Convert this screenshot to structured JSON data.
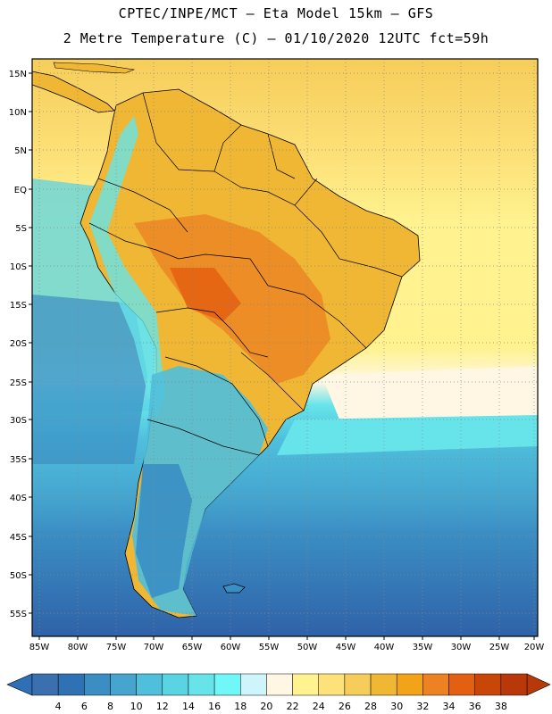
{
  "title_line1": "CPTEC/INPE/MCT –  Eta Model 15km – GFS",
  "title_line2": "2 Metre Temperature (C) – 01/10/2020 12UTC fct=59h",
  "lat_labels": [
    "15N",
    "10N",
    "5N",
    "EQ",
    "5S",
    "10S",
    "15S",
    "20S",
    "25S",
    "30S",
    "35S",
    "40S",
    "45S",
    "50S",
    "55S"
  ],
  "lon_labels": [
    "85W",
    "80W",
    "75W",
    "70W",
    "65W",
    "60W",
    "55W",
    "50W",
    "45W",
    "40W",
    "35W",
    "30W",
    "25W",
    "20W"
  ],
  "colorbar": {
    "labels": [
      "4",
      "6",
      "8",
      "10",
      "12",
      "14",
      "16",
      "18",
      "20",
      "22",
      "24",
      "26",
      "28",
      "30",
      "32",
      "34",
      "36",
      "38"
    ],
    "colors": [
      "#3a6fb0",
      "#2f72b4",
      "#3b8ec4",
      "#45a5cf",
      "#4fbfdc",
      "#5ad3e3",
      "#66e4ea",
      "#70f8f8",
      "#cdf5fb",
      "#fff7e4",
      "#fff28f",
      "#fde27a",
      "#f6cd5a",
      "#efb734",
      "#f3a318",
      "#ec8222",
      "#e36012",
      "#c84708",
      "#b8380a"
    ],
    "under_color": "#2f6fb5",
    "over_color": "#b8380a"
  },
  "map_colors": {
    "ocean_deep": "#2f62a8",
    "ocean_mid": "#3b8ec4",
    "ocean_light": "#4fbfdc",
    "ocean_cyan": "#66e4ea",
    "ocean_pale": "#fff7e4",
    "ocean_warm": "#f6cd5a",
    "land_hot": "#efb734",
    "land_hotter": "#ec8222",
    "andes": "#66e4ea",
    "patagonia": "#3b8ec4"
  }
}
